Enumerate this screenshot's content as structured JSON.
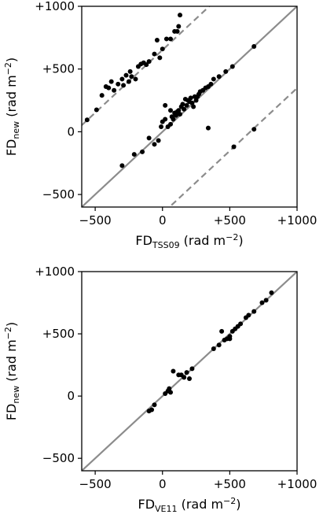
{
  "chart_data": [
    {
      "type": "scatter",
      "xlim": [
        -600,
        1000
      ],
      "ylim": [
        -600,
        1000
      ],
      "xticks": [
        -500,
        0,
        500,
        1000
      ],
      "xtick_labels": [
        "−500",
        "0",
        "+500",
        "+1000"
      ],
      "yticks": [
        -500,
        0,
        500,
        1000
      ],
      "ytick_labels": [
        "−500",
        "0",
        "+500",
        "+1000"
      ],
      "xlabel_main": "FD",
      "xlabel_sub": "TSS09",
      "xlabel_unit": " (rad m",
      "xlabel_exp": "−2",
      "xlabel_close": ")",
      "ylabel_main": "FD",
      "ylabel_sub": "new",
      "ylabel_unit": " (rad m",
      "ylabel_exp": "−2",
      "ylabel_close": ")",
      "grid": false,
      "lines": [
        {
          "style": "solid",
          "color": "#8c8c8c",
          "offset": 0
        },
        {
          "style": "dashed",
          "color": "#8c8c8c",
          "offset": 652
        },
        {
          "style": "dashed",
          "color": "#8c8c8c",
          "offset": -652
        }
      ],
      "points": [
        [
          -560,
          95
        ],
        [
          -490,
          175
        ],
        [
          -450,
          290
        ],
        [
          -420,
          360
        ],
        [
          -400,
          350
        ],
        [
          -380,
          400
        ],
        [
          -360,
          330
        ],
        [
          -330,
          380
        ],
        [
          -300,
          420
        ],
        [
          -290,
          370
        ],
        [
          -270,
          450
        ],
        [
          -250,
          400
        ],
        [
          -240,
          480
        ],
        [
          -230,
          440
        ],
        [
          -200,
          420
        ],
        [
          -180,
          520
        ],
        [
          -160,
          540
        ],
        [
          -140,
          550
        ],
        [
          -120,
          535
        ],
        [
          -100,
          560
        ],
        [
          -60,
          620
        ],
        [
          -40,
          730
        ],
        [
          -20,
          590
        ],
        [
          0,
          660
        ],
        [
          30,
          740
        ],
        [
          60,
          740
        ],
        [
          90,
          800
        ],
        [
          110,
          800
        ],
        [
          120,
          840
        ],
        [
          130,
          930
        ],
        [
          -300,
          -270
        ],
        [
          -210,
          -180
        ],
        [
          -150,
          -160
        ],
        [
          -100,
          -50
        ],
        [
          -60,
          -100
        ],
        [
          -30,
          -70
        ],
        [
          -10,
          40
        ],
        [
          0,
          80
        ],
        [
          20,
          100
        ],
        [
          40,
          40
        ],
        [
          60,
          60
        ],
        [
          70,
          120
        ],
        [
          80,
          100
        ],
        [
          90,
          150
        ],
        [
          100,
          130
        ],
        [
          110,
          160
        ],
        [
          120,
          170
        ],
        [
          130,
          140
        ],
        [
          140,
          200
        ],
        [
          150,
          220
        ],
        [
          160,
          180
        ],
        [
          170,
          260
        ],
        [
          180,
          210
        ],
        [
          190,
          250
        ],
        [
          200,
          240
        ],
        [
          210,
          270
        ],
        [
          220,
          230
        ],
        [
          230,
          200
        ],
        [
          240,
          280
        ],
        [
          250,
          250
        ],
        [
          260,
          280
        ],
        [
          270,
          300
        ],
        [
          280,
          320
        ],
        [
          300,
          330
        ],
        [
          320,
          350
        ],
        [
          340,
          360
        ],
        [
          360,
          380
        ],
        [
          380,
          420
        ],
        [
          420,
          440
        ],
        [
          470,
          480
        ],
        [
          520,
          520
        ],
        [
          680,
          680
        ],
        [
          20,
          210
        ],
        [
          60,
          170
        ],
        [
          340,
          30
        ],
        [
          530,
          -120
        ],
        [
          680,
          20
        ]
      ]
    },
    {
      "type": "scatter",
      "xlim": [
        -600,
        1000
      ],
      "ylim": [
        -600,
        1000
      ],
      "xticks": [
        -500,
        0,
        500,
        1000
      ],
      "xtick_labels": [
        "−500",
        "0",
        "+500",
        "+1000"
      ],
      "yticks": [
        -500,
        0,
        500,
        1000
      ],
      "ytick_labels": [
        "−500",
        "0",
        "+500",
        "+1000"
      ],
      "xlabel_main": "FD",
      "xlabel_sub": "VE11",
      "xlabel_unit": " (rad m",
      "xlabel_exp": "−2",
      "xlabel_close": ")",
      "ylabel_main": "FD",
      "ylabel_sub": "new",
      "ylabel_unit": " (rad m",
      "ylabel_exp": "−2",
      "ylabel_close": ")",
      "grid": false,
      "lines": [
        {
          "style": "solid",
          "color": "#8c8c8c",
          "offset": 0
        }
      ],
      "points": [
        [
          -100,
          -120
        ],
        [
          -80,
          -110
        ],
        [
          -60,
          -70
        ],
        [
          20,
          20
        ],
        [
          40,
          40
        ],
        [
          50,
          60
        ],
        [
          60,
          30
        ],
        [
          80,
          200
        ],
        [
          120,
          170
        ],
        [
          140,
          170
        ],
        [
          160,
          150
        ],
        [
          180,
          190
        ],
        [
          200,
          140
        ],
        [
          220,
          220
        ],
        [
          380,
          380
        ],
        [
          420,
          410
        ],
        [
          440,
          520
        ],
        [
          460,
          450
        ],
        [
          480,
          460
        ],
        [
          500,
          480
        ],
        [
          520,
          520
        ],
        [
          540,
          540
        ],
        [
          560,
          560
        ],
        [
          580,
          580
        ],
        [
          620,
          630
        ],
        [
          640,
          650
        ],
        [
          680,
          680
        ],
        [
          740,
          750
        ],
        [
          770,
          770
        ],
        [
          810,
          830
        ],
        [
          500,
          460
        ]
      ]
    }
  ]
}
